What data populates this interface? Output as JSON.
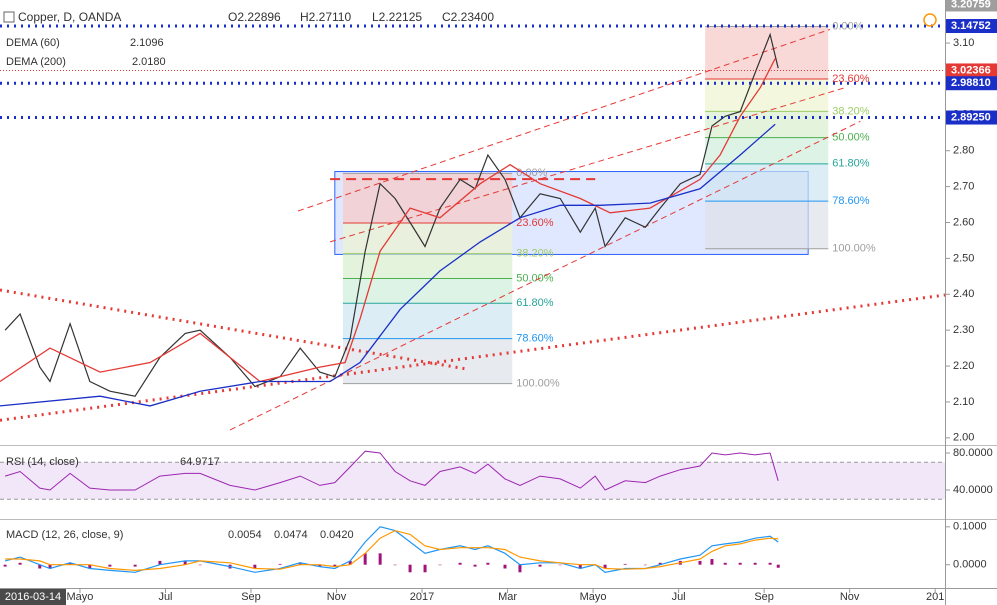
{
  "chart_data": [
    {
      "type": "line",
      "title": "Copper, D, OANDA",
      "ohlc": [
        "O2.22896",
        "H2.27110",
        "L2.22125",
        "C2.23400"
      ],
      "cursor_date": "2016-03-14",
      "xlim": [
        -1.87,
        20.23
      ],
      "xticks": [
        {
          "value": 0,
          "label": "Mayo"
        },
        {
          "value": 2,
          "label": "Jul"
        },
        {
          "value": 4,
          "label": "Sep"
        },
        {
          "value": 6,
          "label": "Nov"
        },
        {
          "value": 8,
          "label": "2017"
        },
        {
          "value": 10,
          "label": "Mar"
        },
        {
          "value": 12,
          "label": "Mayo"
        },
        {
          "value": 14,
          "label": "Jul"
        },
        {
          "value": 16,
          "label": "Sep"
        },
        {
          "value": 18,
          "label": "Nov"
        },
        {
          "value": 20,
          "label": "201"
        }
      ],
      "ylim": [
        1.98,
        3.22
      ],
      "yticks": [
        {
          "value": 2,
          "label": "2.00"
        },
        {
          "value": 2.1,
          "label": "2.10"
        },
        {
          "value": 2.2,
          "label": "2.20"
        },
        {
          "value": 2.3,
          "label": "2.30"
        },
        {
          "value": 2.4,
          "label": "2.40"
        },
        {
          "value": 2.5,
          "label": "2.50"
        },
        {
          "value": 2.6,
          "label": "2.60"
        },
        {
          "value": 2.7,
          "label": "2.70"
        },
        {
          "value": 2.8,
          "label": "2.80"
        },
        {
          "value": 2.9,
          "label": "2.90"
        },
        {
          "value": 3,
          "label": "3.00"
        },
        {
          "value": 3.1,
          "label": "3.10"
        }
      ],
      "x": [
        -1.75,
        -1.4,
        -0.94,
        -0.7,
        -0.23,
        0.23,
        0.7,
        1.29,
        1.87,
        2.46,
        2.81,
        3.51,
        4.09,
        4.68,
        5.15,
        5.61,
        5.96,
        6.32,
        6.67,
        7.02,
        7.37,
        7.72,
        8.07,
        8.42,
        8.89,
        9.24,
        9.54,
        9.94,
        10.29,
        10.76,
        11.23,
        11.7,
        12.05,
        12.28,
        12.75,
        13.22,
        13.57,
        14.04,
        14.5,
        14.78,
        15.09,
        15.44,
        15.79,
        16.14,
        16.33
      ],
      "series": [
        {
          "color": "#333333",
          "values": [
            2.3,
            2.345,
            2.197,
            2.157,
            2.318,
            2.157,
            2.13,
            2.116,
            2.224,
            2.291,
            2.3,
            2.224,
            2.143,
            2.17,
            2.25,
            2.183,
            2.17,
            2.277,
            2.52,
            2.708,
            2.667,
            2.6,
            2.533,
            2.64,
            2.72,
            2.694,
            2.788,
            2.72,
            2.613,
            2.68,
            2.667,
            2.573,
            2.64,
            2.533,
            2.613,
            2.587,
            2.64,
            2.708,
            2.734,
            2.869,
            2.896,
            2.909,
            3.017,
            3.124,
            3.03
          ]
        },
        {
          "name": "DEMA (60)",
          "legend_value": "2.1096",
          "color": "#e53935",
          "x": [
            -1.87,
            -0.7,
            0.47,
            1.64,
            2.81,
            4.21,
            5.61,
            6.2,
            6.55,
            7.02,
            7.72,
            8.42,
            9.36,
            10.06,
            10.76,
            11.7,
            12.4,
            13.33,
            14.5,
            14.97,
            15.44,
            15.91,
            16.26
          ],
          "values": [
            2.157,
            2.25,
            2.183,
            2.21,
            2.291,
            2.157,
            2.197,
            2.21,
            2.331,
            2.52,
            2.64,
            2.613,
            2.708,
            2.761,
            2.708,
            2.667,
            2.627,
            2.64,
            2.72,
            2.788,
            2.896,
            2.976,
            3.057
          ]
        },
        {
          "name": "DEMA (200)",
          "legend_value": "2.0180",
          "color": "#1a2fc7",
          "x": [
            -1.87,
            0.47,
            1.64,
            2.81,
            4.21,
            5.85,
            6.55,
            7.49,
            8.42,
            9.36,
            10.29,
            11.23,
            12.16,
            13.33,
            14.5,
            15.44,
            16.26
          ],
          "values": [
            2.089,
            2.116,
            2.089,
            2.13,
            2.157,
            2.157,
            2.21,
            2.358,
            2.465,
            2.546,
            2.613,
            2.648,
            2.648,
            2.654,
            2.694,
            2.788,
            2.874
          ]
        }
      ],
      "price_lines": [
        {
          "value": 3.20759,
          "label": "3.20759",
          "color": "#9e9e9e",
          "style": "none"
        },
        {
          "value": 3.14752,
          "label": "3.14752",
          "color": "#1a2fc7",
          "style": "dotted"
        },
        {
          "value": 3.02366,
          "label": "3.02366",
          "color": "#e53935",
          "style": "thin"
        },
        {
          "value": 2.9881,
          "label": "2.98810",
          "color": "#1a2fc7",
          "style": "dotted"
        },
        {
          "value": 2.8925,
          "label": "2.89250",
          "color": "#1a2fc7",
          "style": "dotted"
        }
      ],
      "box": {
        "x": [
          5.96,
          17.03
        ],
        "y": [
          2.511,
          2.742
        ],
        "color": "#2962ff"
      },
      "fibs": [
        {
          "x": [
            14.62,
            17.5
          ],
          "top": 3.146,
          "bottom": 2.527,
          "levels": [
            0,
            23.6,
            38.2,
            50,
            61.8,
            78.6,
            100
          ],
          "level_labels": [
            "0.00%",
            "23.60%",
            "38.20%",
            "50.00%",
            "61.80%",
            "78.60%",
            "100.00%"
          ]
        },
        {
          "x": [
            6.15,
            10.11
          ],
          "top": 2.737,
          "bottom": 2.151,
          "levels": [
            0,
            23.6,
            38.2,
            50,
            61.8,
            78.6,
            100
          ],
          "level_labels": [
            "0.00%",
            "23.60%",
            "38.20%",
            "50.00%",
            "61.80%",
            "78.60%",
            "100.00%"
          ]
        }
      ],
      "fib_colors": [
        "#9e9e9e",
        "#e53935",
        "#9ccc65",
        "#4caf50",
        "#26a69a",
        "#2196f3",
        "#9e9e9e"
      ],
      "fib_fills": [
        "#f6c9c6",
        "#ecf3cf",
        "#d8f0cd",
        "#cdeedb",
        "#cfe6f1",
        "#dde1e8"
      ],
      "trend_lines": [
        {
          "x": [
            -1.87,
            9.08
          ],
          "y": [
            2.412,
            2.191
          ],
          "color": "#e53935",
          "style": "dotted"
        },
        {
          "x": [
            -1.87,
            20.23
          ],
          "y": [
            2.049,
            2.398
          ],
          "color": "#e53935",
          "style": "dotted"
        },
        {
          "x": [
            5.1,
            17.54
          ],
          "y": [
            2.632,
            3.138
          ],
          "color": "#e53935",
          "style": "dashed"
        },
        {
          "x": [
            3.51,
            18.25
          ],
          "y": [
            2.022,
            2.882
          ],
          "color": "#e53935",
          "style": "dashed"
        },
        {
          "x": [
            5.85,
            17.9
          ],
          "y": [
            2.546,
            2.976
          ],
          "color": "#e53935",
          "style": "dashed"
        },
        {
          "x": [
            5.85,
            12.05
          ],
          "y": [
            2.721,
            2.721
          ],
          "color": "#e53935",
          "style": "longdash"
        }
      ]
    },
    {
      "type": "line",
      "title": "RSI (14, close)",
      "legend_value": "64.9717",
      "ylim": [
        9.7,
        87.6
      ],
      "yticks": [
        {
          "value": 80,
          "label": "80.0000"
        },
        {
          "value": 40,
          "label": "40.0000"
        }
      ],
      "band": [
        30,
        70
      ],
      "band_color": "#e9d5f5",
      "series": [
        {
          "color": "#9c27b0",
          "values": [
            55,
            60,
            42,
            40,
            58,
            42,
            40,
            40,
            55,
            58,
            58,
            45,
            40,
            48,
            55,
            45,
            48,
            65,
            82,
            80,
            60,
            50,
            45,
            60,
            65,
            58,
            68,
            52,
            45,
            55,
            52,
            42,
            55,
            40,
            50,
            48,
            55,
            62,
            66,
            80,
            78,
            80,
            78,
            80,
            50
          ]
        }
      ]
    },
    {
      "type": "macd",
      "title": "MACD (12, 26, close, 9)",
      "ylim": [
        -0.0615,
        0.118
      ],
      "yticks": [
        {
          "value": 0.1,
          "label": "0.1000"
        },
        {
          "value": 0,
          "label": "0.0000"
        }
      ],
      "series": [
        {
          "legend_value": "0.0054",
          "color": "#a0147a",
          "kind": "histogram",
          "values": [
            -0.005,
            0.005,
            -0.01,
            -0.01,
            0.005,
            -0.01,
            -0.005,
            -0.005,
            0.01,
            0.01,
            0,
            -0.01,
            -0.01,
            0.002,
            0.005,
            -0.005,
            -0.005,
            0.01,
            0.03,
            0.03,
            0,
            -0.02,
            -0.02,
            0,
            0.005,
            -0.005,
            0.005,
            -0.01,
            -0.02,
            -0.005,
            0,
            -0.01,
            0,
            -0.01,
            0.002,
            0,
            0.005,
            0.01,
            0.01,
            0.015,
            0.005,
            0.005,
            0.005,
            0.005,
            -0.008
          ]
        },
        {
          "legend_value": "0.0474",
          "color": "#2196f3",
          "kind": "line",
          "values": [
            0.01,
            0.02,
            0,
            -0.01,
            0.005,
            -0.01,
            -0.015,
            -0.02,
            0,
            0.01,
            0.01,
            -0.005,
            -0.02,
            -0.01,
            0.005,
            -0.005,
            -0.01,
            0.01,
            0.06,
            0.1,
            0.09,
            0.06,
            0.03,
            0.04,
            0.05,
            0.04,
            0.05,
            0.03,
            0,
            0.005,
            0.005,
            -0.01,
            0,
            -0.02,
            -0.01,
            -0.01,
            0,
            0.015,
            0.025,
            0.05,
            0.055,
            0.06,
            0.07,
            0.075,
            0.06
          ]
        },
        {
          "legend_value": "0.0420",
          "color": "#ff9800",
          "kind": "line",
          "values": [
            0.015,
            0.015,
            0.01,
            0,
            0,
            0,
            -0.01,
            -0.015,
            -0.01,
            0,
            0.01,
            0.005,
            -0.01,
            -0.012,
            0,
            0,
            -0.005,
            0,
            0.03,
            0.07,
            0.09,
            0.08,
            0.05,
            0.04,
            0.045,
            0.045,
            0.045,
            0.04,
            0.02,
            0.01,
            0.005,
            0,
            0,
            -0.01,
            -0.012,
            -0.01,
            -0.005,
            0.005,
            0.015,
            0.035,
            0.05,
            0.055,
            0.065,
            0.07,
            0.068
          ]
        }
      ]
    }
  ]
}
